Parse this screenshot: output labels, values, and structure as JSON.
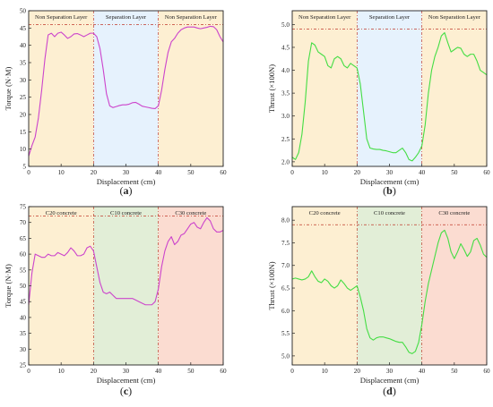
{
  "chart_data": [
    {
      "type": "line",
      "caption": "a",
      "xlabel": "Displacement (cm)",
      "ylabel": "Torque (N·M)",
      "xlim": [
        0,
        60
      ],
      "ylim": [
        5,
        50
      ],
      "xticks": [
        0,
        10,
        20,
        30,
        40,
        50,
        60
      ],
      "yticks": [
        5,
        10,
        15,
        20,
        25,
        30,
        35,
        40,
        45,
        50
      ],
      "zones": [
        {
          "x0": 0,
          "x1": 20,
          "label": "Non Separation Layer",
          "color": "#fdefd2"
        },
        {
          "x0": 20,
          "x1": 40,
          "label": "Separation Layer",
          "color": "#e6f2fd"
        },
        {
          "x0": 40,
          "x1": 60,
          "label": "Non Separation Layer",
          "color": "#fdefd2"
        }
      ],
      "refline_y": 46,
      "series": [
        {
          "color": "#cc44cc",
          "x": [
            0,
            1,
            2,
            3,
            4,
            5,
            6,
            7,
            8,
            9,
            10,
            11,
            12,
            13,
            14,
            15,
            16,
            17,
            18,
            19,
            20,
            21,
            22,
            23,
            24,
            25,
            26,
            27,
            28,
            29,
            30,
            31,
            32,
            33,
            34,
            35,
            36,
            37,
            38,
            39,
            40,
            41,
            42,
            43,
            44,
            45,
            46,
            47,
            48,
            49,
            50,
            51,
            52,
            53,
            54,
            55,
            56,
            57,
            58,
            59,
            60
          ],
          "y": [
            8,
            11,
            13.5,
            19,
            27,
            36,
            43,
            43.5,
            42.5,
            43.5,
            43.8,
            43,
            42,
            42.5,
            43.3,
            43.4,
            43,
            42.5,
            43,
            43.5,
            43.5,
            42.5,
            39,
            33,
            26,
            22.5,
            22,
            22.3,
            22.6,
            22.8,
            22.8,
            23,
            23.4,
            23.5,
            23,
            22.4,
            22.2,
            22,
            21.8,
            21.7,
            22.5,
            27,
            33,
            38,
            41,
            42,
            43.5,
            44.5,
            45,
            45.3,
            45.3,
            45.3,
            45,
            44.8,
            45,
            45.2,
            45.5,
            45.4,
            44.5,
            42.5,
            41
          ]
        }
      ]
    },
    {
      "type": "line",
      "caption": "b",
      "xlabel": "Displacement (cm)",
      "ylabel": "Thrust (×100N)",
      "xlim": [
        0,
        60
      ],
      "ylim": [
        1.9,
        5.3
      ],
      "xticks": [
        0,
        10,
        20,
        30,
        40,
        50,
        60
      ],
      "yticks": [
        2.0,
        2.5,
        3.0,
        3.5,
        4.0,
        4.5,
        5.0
      ],
      "zones": [
        {
          "x0": 0,
          "x1": 20,
          "label": "Non Separation Layer",
          "color": "#fdefd2"
        },
        {
          "x0": 20,
          "x1": 40,
          "label": "Separation Layer",
          "color": "#e6f2fd"
        },
        {
          "x0": 40,
          "x1": 60,
          "label": "Non Separation Layer",
          "color": "#fdefd2"
        }
      ],
      "refline_y": 4.9,
      "series": [
        {
          "color": "#44dd44",
          "x": [
            0,
            1,
            2,
            3,
            4,
            5,
            6,
            7,
            8,
            9,
            10,
            11,
            12,
            13,
            14,
            15,
            16,
            17,
            18,
            19,
            20,
            21,
            22,
            23,
            24,
            25,
            26,
            27,
            28,
            29,
            30,
            31,
            32,
            33,
            34,
            35,
            36,
            37,
            38,
            39,
            40,
            41,
            42,
            43,
            44,
            45,
            46,
            47,
            48,
            49,
            50,
            51,
            52,
            53,
            54,
            55,
            56,
            57,
            58,
            59,
            60
          ],
          "y": [
            2.1,
            2.05,
            2.2,
            2.6,
            3.3,
            4.2,
            4.6,
            4.55,
            4.4,
            4.35,
            4.3,
            4.1,
            4.05,
            4.25,
            4.3,
            4.25,
            4.1,
            4.05,
            4.15,
            4.1,
            4.05,
            3.7,
            3.1,
            2.5,
            2.3,
            2.28,
            2.27,
            2.27,
            2.25,
            2.24,
            2.22,
            2.2,
            2.2,
            2.25,
            2.3,
            2.2,
            2.05,
            2.02,
            2.1,
            2.2,
            2.35,
            2.8,
            3.5,
            4.0,
            4.3,
            4.5,
            4.75,
            4.82,
            4.6,
            4.4,
            4.45,
            4.5,
            4.48,
            4.35,
            4.3,
            4.35,
            4.35,
            4.2,
            4.0,
            3.95,
            3.9
          ]
        }
      ]
    },
    {
      "type": "line",
      "caption": "c",
      "xlabel": "Displacement (cm)",
      "ylabel": "Torque (N·M)",
      "xlim": [
        0,
        60
      ],
      "ylim": [
        25,
        75
      ],
      "xticks": [
        0,
        10,
        20,
        30,
        40,
        50,
        60
      ],
      "yticks": [
        25,
        30,
        35,
        40,
        45,
        50,
        55,
        60,
        65,
        70,
        75
      ],
      "zones": [
        {
          "x0": 0,
          "x1": 20,
          "label": "C20 concrete",
          "color": "#fdefd2"
        },
        {
          "x0": 20,
          "x1": 40,
          "label": "C10 concrete",
          "color": "#e2eed7"
        },
        {
          "x0": 40,
          "x1": 60,
          "label": "C30 concrete",
          "color": "#fbdcd1"
        }
      ],
      "refline_y": 72,
      "series": [
        {
          "color": "#cc44cc",
          "x": [
            0,
            1,
            2,
            3,
            4,
            5,
            6,
            7,
            8,
            9,
            10,
            11,
            12,
            13,
            14,
            15,
            16,
            17,
            18,
            19,
            20,
            21,
            22,
            23,
            24,
            25,
            26,
            27,
            28,
            29,
            30,
            31,
            32,
            33,
            34,
            35,
            36,
            37,
            38,
            39,
            40,
            41,
            42,
            43,
            44,
            45,
            46,
            47,
            48,
            49,
            50,
            51,
            52,
            53,
            54,
            55,
            56,
            57,
            58,
            59,
            60
          ],
          "y": [
            44,
            54,
            60,
            59.5,
            59,
            59,
            60,
            59.5,
            59.5,
            60.5,
            60,
            59.5,
            60.5,
            62,
            61,
            59.5,
            59.5,
            60,
            62,
            62.5,
            61,
            56,
            51,
            48,
            47.5,
            48,
            47,
            46,
            46,
            46,
            46,
            46,
            46,
            45.5,
            45,
            44.5,
            44,
            44,
            44,
            45,
            49,
            56,
            61,
            64,
            65.5,
            63,
            64,
            66,
            66.5,
            68,
            69.5,
            70,
            68.5,
            68,
            70,
            71.5,
            70.5,
            68,
            67,
            67,
            67.5
          ]
        }
      ]
    },
    {
      "type": "line",
      "caption": "d",
      "xlabel": "Displacement (cm)",
      "ylabel": "Thrust (×100N)",
      "xlim": [
        0,
        60
      ],
      "ylim": [
        4.8,
        8.3
      ],
      "xticks": [
        0,
        10,
        20,
        30,
        40,
        50,
        60
      ],
      "yticks": [
        5.0,
        5.5,
        6.0,
        6.5,
        7.0,
        7.5,
        8.0
      ],
      "zones": [
        {
          "x0": 0,
          "x1": 20,
          "label": "C20 concrete",
          "color": "#fdefd2"
        },
        {
          "x0": 20,
          "x1": 40,
          "label": "C10 concrete",
          "color": "#e2eed7"
        },
        {
          "x0": 40,
          "x1": 60,
          "label": "C30 concrete",
          "color": "#fbdcd1"
        }
      ],
      "refline_y": 7.9,
      "series": [
        {
          "color": "#44dd44",
          "x": [
            0,
            1,
            2,
            3,
            4,
            5,
            6,
            7,
            8,
            9,
            10,
            11,
            12,
            13,
            14,
            15,
            16,
            17,
            18,
            19,
            20,
            21,
            22,
            23,
            24,
            25,
            26,
            27,
            28,
            29,
            30,
            31,
            32,
            33,
            34,
            35,
            36,
            37,
            38,
            39,
            40,
            41,
            42,
            43,
            44,
            45,
            46,
            47,
            48,
            49,
            50,
            51,
            52,
            53,
            54,
            55,
            56,
            57,
            58,
            59,
            60
          ],
          "y": [
            6.7,
            6.72,
            6.7,
            6.68,
            6.7,
            6.75,
            6.88,
            6.75,
            6.65,
            6.62,
            6.7,
            6.65,
            6.55,
            6.5,
            6.55,
            6.68,
            6.6,
            6.5,
            6.45,
            6.5,
            6.55,
            6.3,
            6.0,
            5.6,
            5.4,
            5.35,
            5.4,
            5.42,
            5.42,
            5.4,
            5.38,
            5.35,
            5.32,
            5.3,
            5.3,
            5.2,
            5.08,
            5.05,
            5.1,
            5.3,
            5.7,
            6.2,
            6.6,
            6.9,
            7.2,
            7.5,
            7.72,
            7.78,
            7.6,
            7.3,
            7.15,
            7.3,
            7.48,
            7.35,
            7.2,
            7.3,
            7.55,
            7.6,
            7.45,
            7.25,
            7.18
          ]
        }
      ]
    }
  ]
}
